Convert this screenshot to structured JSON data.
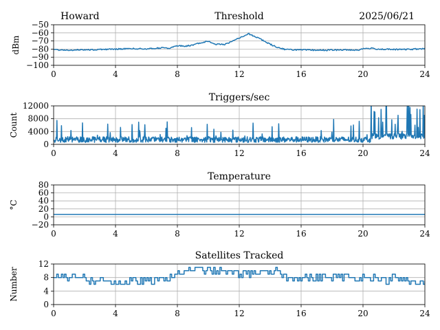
{
  "header": {
    "station": "Howard",
    "date": "2025/06/21"
  },
  "colors": {
    "series": "#1f77b4",
    "grid": "#b0b0b0"
  },
  "chart_data": [
    {
      "type": "line",
      "title": "Threshold",
      "ylabel": "dBm",
      "xlim": [
        0,
        24
      ],
      "ylim": [
        -100,
        -50
      ],
      "xticks": [
        0,
        4,
        8,
        12,
        16,
        20,
        24
      ],
      "yticks": [
        -100,
        -90,
        -80,
        -70,
        -60,
        -50
      ],
      "ytick_labels": [
        "−100",
        "−90",
        "−80",
        "−70",
        "−60",
        "−50"
      ],
      "grid": true,
      "kind": "smooth",
      "points": [
        [
          0,
          -81
        ],
        [
          1,
          -81.2
        ],
        [
          2,
          -80.8
        ],
        [
          3,
          -80.5
        ],
        [
          4,
          -80
        ],
        [
          5,
          -79.5
        ],
        [
          6,
          -79.6
        ],
        [
          7,
          -78.5
        ],
        [
          7.5,
          -79
        ],
        [
          8,
          -76
        ],
        [
          8.5,
          -76.5
        ],
        [
          9,
          -75
        ],
        [
          9.5,
          -72
        ],
        [
          10,
          -70.5
        ],
        [
          10.5,
          -74
        ],
        [
          11,
          -74.5
        ],
        [
          11.5,
          -71
        ],
        [
          12,
          -66
        ],
        [
          12.3,
          -64
        ],
        [
          12.6,
          -61
        ],
        [
          12.9,
          -63.5
        ],
        [
          13.2,
          -66
        ],
        [
          13.6,
          -70
        ],
        [
          14,
          -74
        ],
        [
          14.5,
          -78
        ],
        [
          15,
          -80.5
        ],
        [
          16,
          -81
        ],
        [
          17,
          -81.3
        ],
        [
          18,
          -81.2
        ],
        [
          19,
          -81
        ],
        [
          19.7,
          -81.2
        ],
        [
          20,
          -79.5
        ],
        [
          20.5,
          -79
        ],
        [
          21,
          -80
        ],
        [
          22,
          -80.5
        ],
        [
          23,
          -80.3
        ],
        [
          24,
          -79.5
        ]
      ],
      "noise": 0.8,
      "samples": 480
    },
    {
      "type": "line",
      "title": "Triggers/sec",
      "ylabel": "Count",
      "xlim": [
        0,
        24
      ],
      "ylim": [
        0,
        12000
      ],
      "xticks": [
        0,
        4,
        8,
        12,
        16,
        20,
        24
      ],
      "yticks": [
        0,
        4000,
        8000,
        12000
      ],
      "ytick_labels": [
        "0",
        "4000",
        "8000",
        "12000"
      ],
      "grid": true,
      "kind": "spiky",
      "baseline": 1500,
      "jitter": 900,
      "spike_prob": 0.05,
      "spike_max": 5500,
      "tail_start": 20.5,
      "tail_baseline": 2500,
      "tail_spike_prob": 0.22,
      "tail_spike_max": 12000,
      "samples": 900
    },
    {
      "type": "line",
      "title": "Temperature",
      "ylabel": "°C",
      "xlim": [
        0,
        24
      ],
      "ylim": [
        -20,
        80
      ],
      "xticks": [
        0,
        4,
        8,
        12,
        16,
        20,
        24
      ],
      "yticks": [
        -20,
        0,
        20,
        40,
        60,
        80
      ],
      "ytick_labels": [
        "−20",
        "0",
        "20",
        "40",
        "60",
        "80"
      ],
      "grid": true,
      "kind": "smooth",
      "points": [
        [
          0,
          6
        ],
        [
          24,
          6
        ]
      ],
      "noise": 0,
      "samples": 2
    },
    {
      "type": "line",
      "title": "Satellites Tracked",
      "ylabel": "Number",
      "xlim": [
        0,
        24
      ],
      "ylim": [
        0,
        12
      ],
      "xticks": [
        0,
        4,
        8,
        12,
        16,
        20,
        24
      ],
      "yticks": [
        0,
        4,
        8,
        12
      ],
      "ytick_labels": [
        "0",
        "4",
        "8",
        "12"
      ],
      "grid": true,
      "kind": "step",
      "points": [
        [
          0,
          8
        ],
        [
          0.5,
          9
        ],
        [
          1,
          8
        ],
        [
          2,
          8.5
        ],
        [
          2.3,
          7
        ],
        [
          3,
          7
        ],
        [
          4,
          7
        ],
        [
          4.5,
          6
        ],
        [
          5,
          7
        ],
        [
          6,
          7
        ],
        [
          6.5,
          7
        ],
        [
          7,
          7.5
        ],
        [
          8,
          9
        ],
        [
          8.5,
          10
        ],
        [
          9,
          10.5
        ],
        [
          10,
          10
        ],
        [
          11,
          10
        ],
        [
          12,
          9
        ],
        [
          13,
          9.5
        ],
        [
          14,
          9
        ],
        [
          14.5,
          10
        ],
        [
          15,
          8
        ],
        [
          16,
          8
        ],
        [
          17,
          8
        ],
        [
          18,
          8
        ],
        [
          19,
          8
        ],
        [
          20,
          8
        ],
        [
          21,
          8
        ],
        [
          21.5,
          7
        ],
        [
          22,
          8
        ],
        [
          23,
          7
        ],
        [
          23.5,
          6
        ],
        [
          24,
          7
        ]
      ],
      "noise": 1.1,
      "samples": 240
    }
  ]
}
